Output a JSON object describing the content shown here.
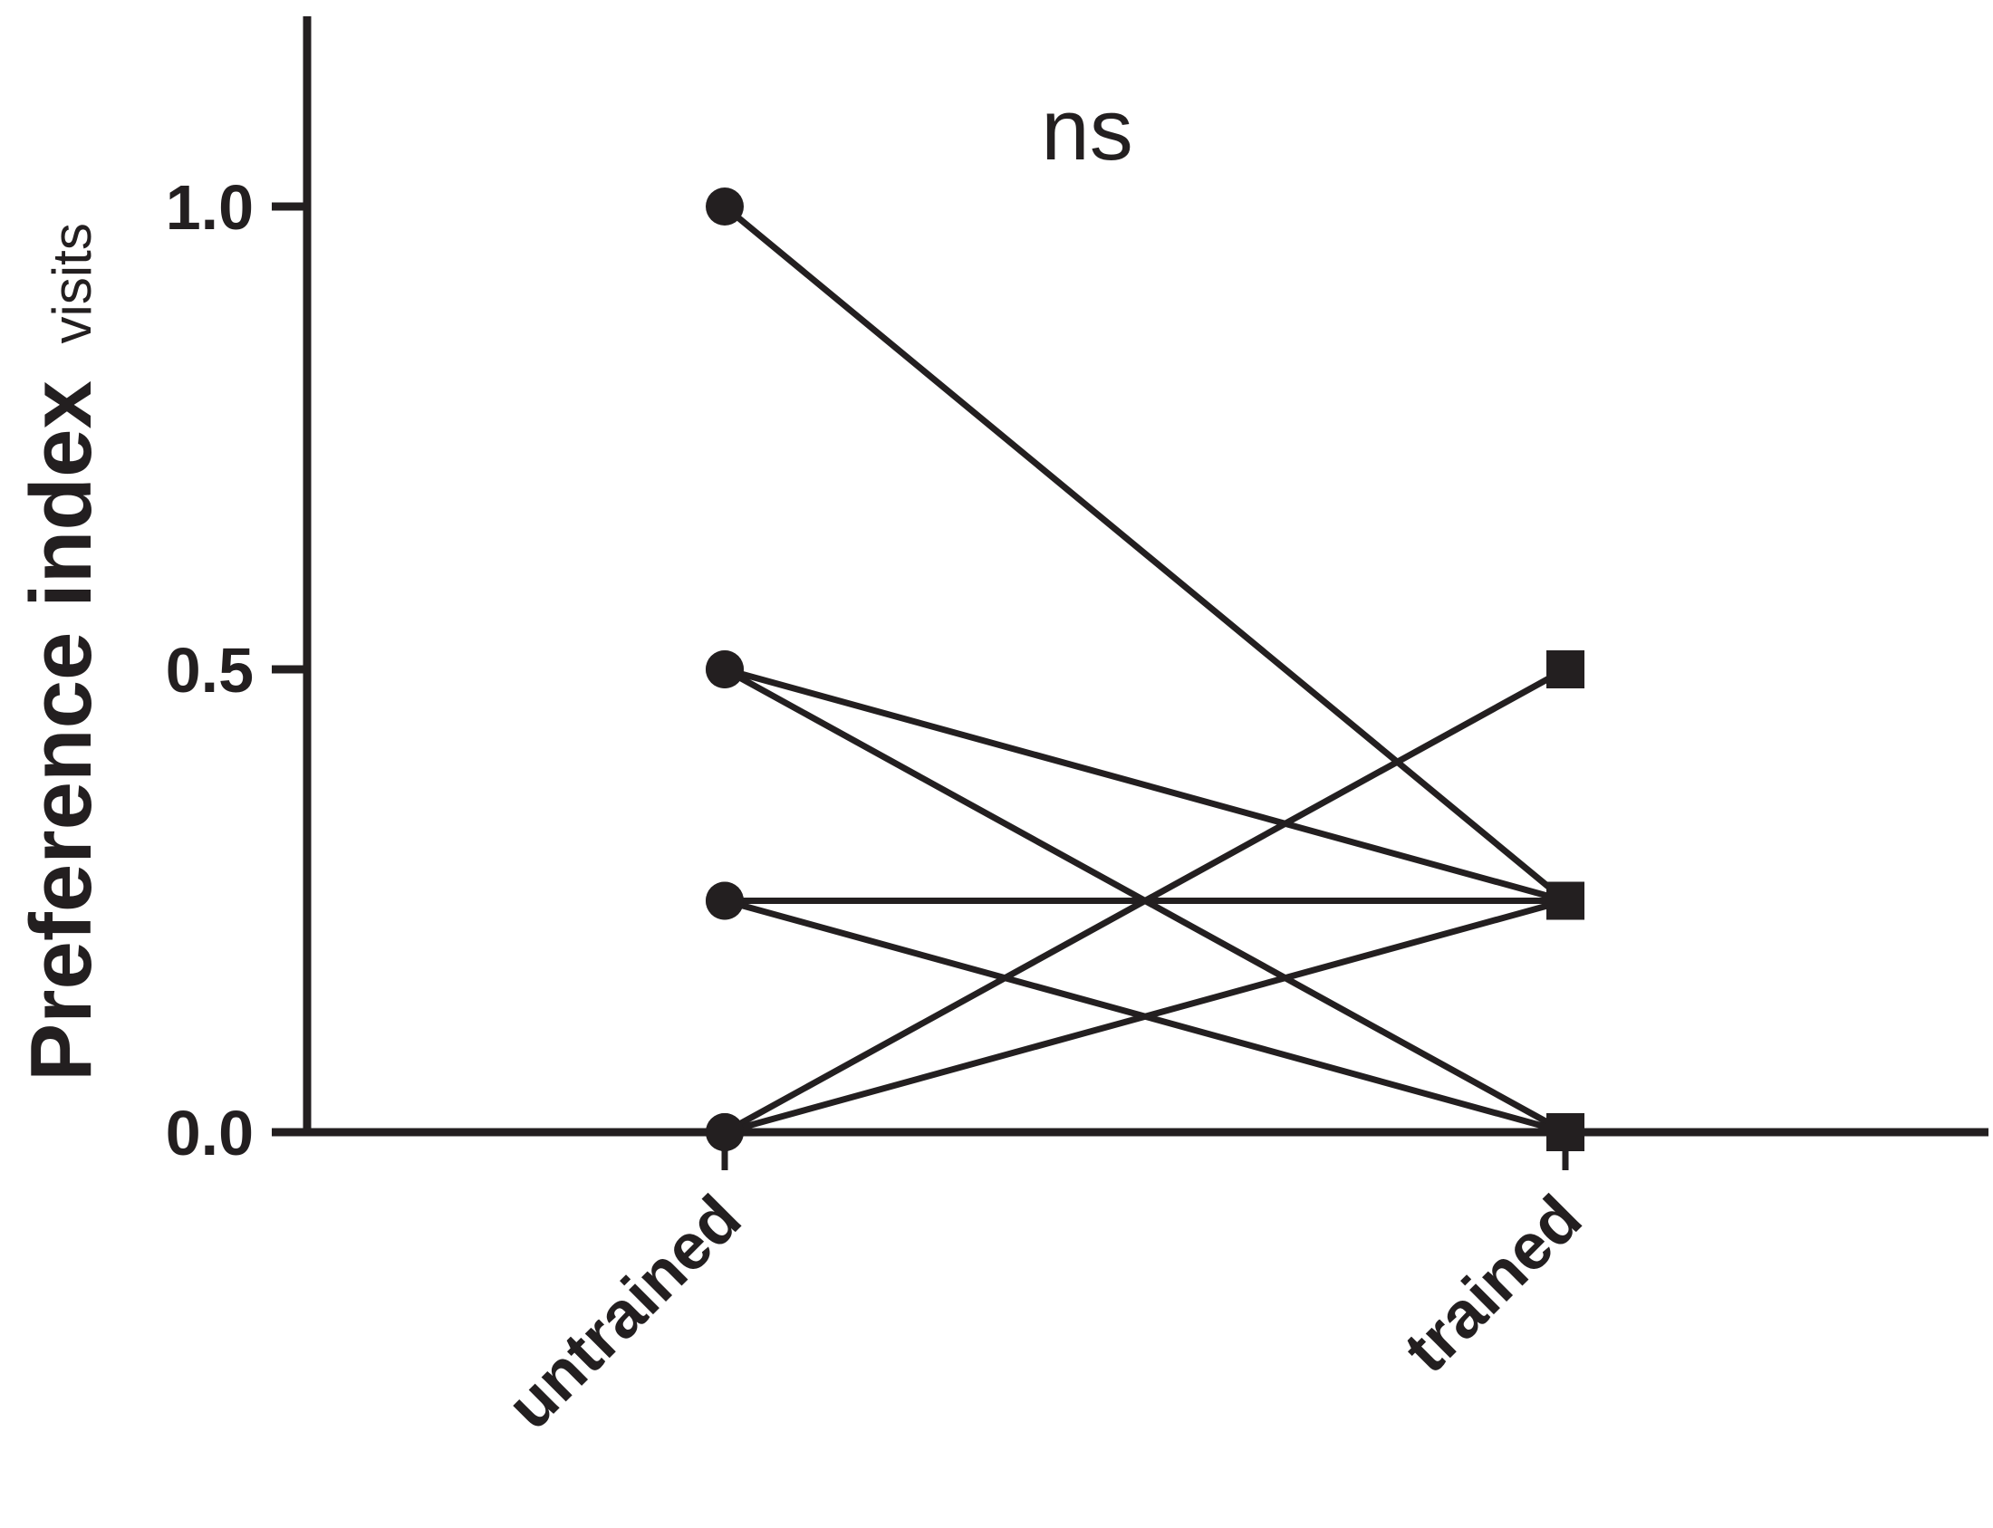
{
  "chart_data": {
    "type": "line",
    "categories": [
      "untrained",
      "trained"
    ],
    "ylabel": "Preference index",
    "ylabel_subscript": "visits",
    "ylim": [
      0,
      1.25
    ],
    "yticks": [
      0.0,
      0.5,
      1.0
    ],
    "ytick_labels": [
      "0.0",
      "0.5",
      "1.0"
    ],
    "annotation": "ns",
    "grid": false,
    "legend": "none",
    "markers": {
      "untrained": "circle",
      "trained": "square"
    },
    "color": "#231f20",
    "pairs": [
      {
        "untrained": 1.0,
        "trained": 0.25
      },
      {
        "untrained": 0.5,
        "trained": 0.25
      },
      {
        "untrained": 0.5,
        "trained": 0.0
      },
      {
        "untrained": 0.25,
        "trained": 0.25
      },
      {
        "untrained": 0.25,
        "trained": 0.0
      },
      {
        "untrained": 0.0,
        "trained": 0.5
      },
      {
        "untrained": 0.0,
        "trained": 0.25
      },
      {
        "untrained": 0.0,
        "trained": 0.0
      }
    ]
  }
}
